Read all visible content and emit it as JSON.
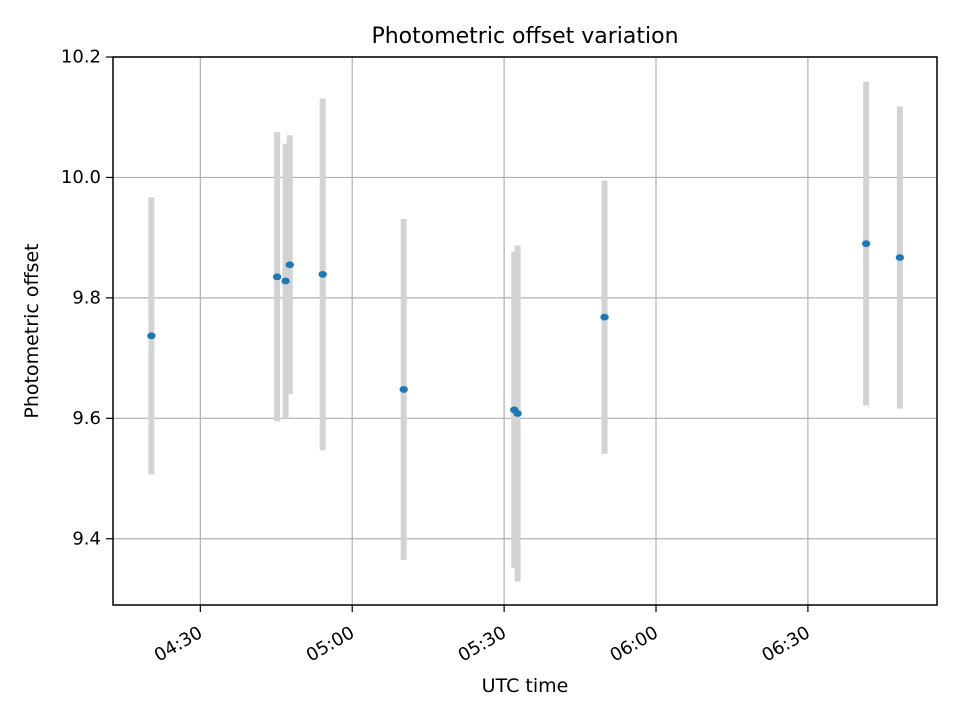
{
  "chart_data": {
    "type": "scatter",
    "title": "Photometric offset variation",
    "xlabel": "UTC time",
    "ylabel": "Photometric offset",
    "x_ticks": [
      "04:30",
      "05:00",
      "05:30",
      "06:00",
      "06:30"
    ],
    "y_ticks": [
      9.4,
      9.6,
      9.8,
      10.0,
      10.2
    ],
    "y_tick_labels": [
      "9.4",
      "9.6",
      "9.8",
      "10.0",
      "10.2"
    ],
    "xlim": [
      "04:12:45",
      "06:55:30"
    ],
    "ylim": [
      9.29,
      10.2
    ],
    "grid": true,
    "colors": {
      "point": "#1f77b4",
      "errorbar": "#d3d3d3",
      "grid": "#b0b0b0"
    },
    "series": [
      {
        "points": [
          {
            "x": "04:20:20",
            "y": 9.737,
            "yerr": 0.23
          },
          {
            "x": "04:45:10",
            "y": 9.835,
            "yerr": 0.24
          },
          {
            "x": "04:46:50",
            "y": 9.828,
            "yerr": 0.228
          },
          {
            "x": "04:47:40",
            "y": 9.855,
            "yerr": 0.215
          },
          {
            "x": "04:54:10",
            "y": 9.839,
            "yerr": 0.292
          },
          {
            "x": "05:10:10",
            "y": 9.648,
            "yerr": 0.283
          },
          {
            "x": "05:32:00",
            "y": 9.614,
            "yerr": 0.263
          },
          {
            "x": "05:32:40",
            "y": 9.608,
            "yerr": 0.279
          },
          {
            "x": "05:49:50",
            "y": 9.768,
            "yerr": 0.227
          },
          {
            "x": "06:41:30",
            "y": 9.89,
            "yerr": 0.269
          },
          {
            "x": "06:48:10",
            "y": 9.867,
            "yerr": 0.251
          }
        ]
      }
    ]
  }
}
